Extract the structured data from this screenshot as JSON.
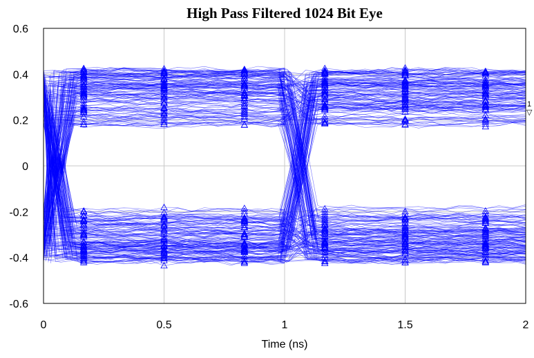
{
  "chart_data": {
    "type": "line",
    "title": "High Pass Filtered 1024 Bit Eye",
    "xlabel": "Time (ns)",
    "ylabel": "",
    "xlim": [
      0,
      2
    ],
    "ylim": [
      -0.6,
      0.6
    ],
    "x_ticks": [
      "0",
      "0.5",
      "1",
      "1.5",
      "2"
    ],
    "y_ticks": [
      "0.6",
      "0.4",
      "0.2",
      "0",
      "-0.2",
      "-0.4",
      "-0.6"
    ],
    "grid": true,
    "series_color": "#0000ff",
    "marker": "triangle",
    "bit_period_ns": 1,
    "bits": 1024,
    "high_level_range": [
      0.13,
      0.42
    ],
    "low_level_range": [
      -0.42,
      -0.13
    ],
    "crossing_times_ns": [
      0,
      1,
      2
    ],
    "trace_tag": "1"
  }
}
